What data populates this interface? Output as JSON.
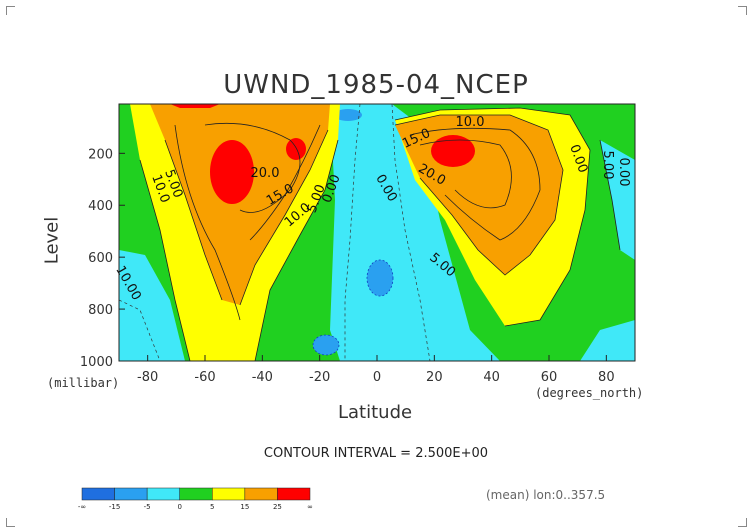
{
  "chart_data": {
    "type": "contour",
    "title": "UWND_1985-04_NCEP",
    "xlabel": "Latitude",
    "xunit": "(degrees_north)",
    "ylabel": "Level",
    "yunit": "(millibar)",
    "xlim": [
      -90,
      90
    ],
    "ylim": [
      1000,
      10
    ],
    "x_ticks": [
      "-80",
      "-60",
      "-40",
      "-20",
      "0",
      "20",
      "40",
      "60",
      "80"
    ],
    "x_tick_values": [
      -80,
      -60,
      -40,
      -20,
      0,
      20,
      40,
      60,
      80
    ],
    "y_ticks": [
      "200",
      "400",
      "600",
      "800",
      "1000"
    ],
    "y_tick_values": [
      200,
      400,
      600,
      800,
      1000
    ],
    "contour_interval_text": "CONTOUR INTERVAL = 2.500E+00",
    "contour_labels": [
      "20.0",
      "15.0",
      "10.0",
      "5.00",
      "0.00",
      "10.0",
      "15.0",
      "20.0",
      "5.00",
      "0.00",
      "5.00",
      "10.0",
      "5.00",
      "0.00",
      "0.00",
      "10.00"
    ],
    "colorbar": {
      "labels": [
        "-∞",
        "-15",
        "-5",
        "0",
        "5",
        "15",
        "25",
        "∞"
      ],
      "colors": [
        "#1f6fe0",
        "#2aa0f0",
        "#40e8f8",
        "#20d020",
        "#ffff00",
        "#f8a000",
        "#ff0000"
      ]
    }
  },
  "footer": {
    "mean_text": "(mean) lon:0..357.5"
  }
}
